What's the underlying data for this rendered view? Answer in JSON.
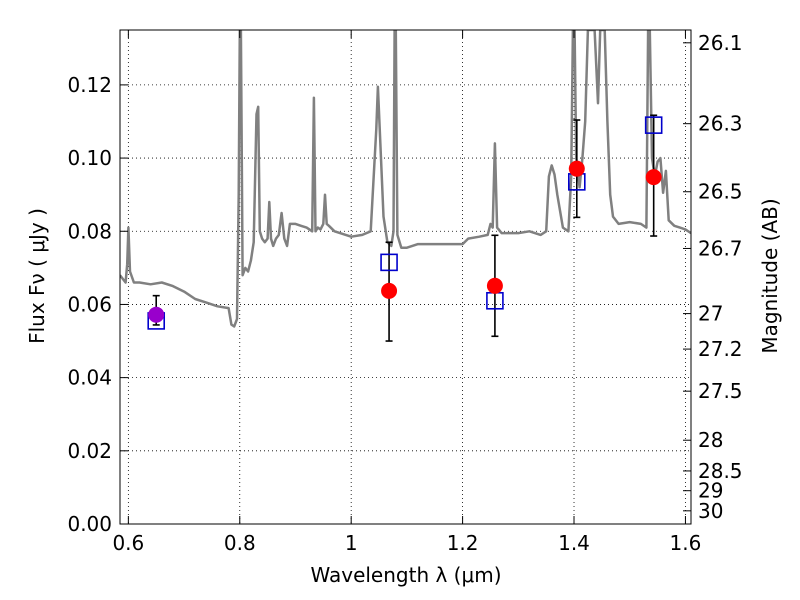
{
  "chart_data": {
    "type": "scatter",
    "title": "",
    "xlabel": "Wavelength  λ (μm)",
    "ylabel": "Flux  Fν  ( μJy )",
    "ylabel_right": "Magnitude (AB)",
    "xlim": [
      0.585,
      1.61
    ],
    "ylim": [
      0.0,
      0.135
    ],
    "grid": true,
    "x_ticks": [
      0.6,
      0.8,
      1.0,
      1.2,
      1.4,
      1.6
    ],
    "x_tick_labels": [
      "0.6",
      "0.8",
      "1",
      "1.2",
      "1.4",
      "1.6"
    ],
    "y_ticks": [
      0.0,
      0.02,
      0.04,
      0.06,
      0.08,
      0.1,
      0.12
    ],
    "y_tick_labels": [
      "0.00",
      "0.02",
      "0.04",
      "0.06",
      "0.08",
      "0.10",
      "0.12"
    ],
    "right_ticks": [
      {
        "flux": 0.1315,
        "label": "26.1"
      },
      {
        "flux": 0.1094,
        "label": "26.3"
      },
      {
        "flux": 0.0908,
        "label": "26.5"
      },
      {
        "flux": 0.0753,
        "label": "26.7"
      },
      {
        "flux": 0.0575,
        "label": "27"
      },
      {
        "flux": 0.0478,
        "label": "27.2"
      },
      {
        "flux": 0.0363,
        "label": "27.5"
      },
      {
        "flux": 0.0229,
        "label": "28"
      },
      {
        "flux": 0.0145,
        "label": "28.5"
      },
      {
        "flux": 0.0091,
        "label": "29"
      },
      {
        "flux": 0.0036,
        "label": "30"
      }
    ],
    "colors": {
      "model": "#808080",
      "observed": "#ff0000",
      "first_point": "#9900cc",
      "synthetic": "#0000cc",
      "errorbar": "#000000"
    },
    "series": [
      {
        "kind": "line",
        "points": [
          [
            0.585,
            0.068
          ],
          [
            0.595,
            0.066
          ],
          [
            0.598,
            0.071
          ],
          [
            0.6,
            0.081
          ],
          [
            0.603,
            0.069
          ],
          [
            0.61,
            0.066
          ],
          [
            0.62,
            0.066
          ],
          [
            0.64,
            0.0655
          ],
          [
            0.66,
            0.066
          ],
          [
            0.68,
            0.065
          ],
          [
            0.7,
            0.0635
          ],
          [
            0.72,
            0.0615
          ],
          [
            0.74,
            0.0605
          ],
          [
            0.76,
            0.0595
          ],
          [
            0.78,
            0.059
          ],
          [
            0.785,
            0.0545
          ],
          [
            0.79,
            0.054
          ],
          [
            0.795,
            0.056
          ],
          [
            0.798,
            0.09
          ],
          [
            0.8,
            0.135
          ],
          [
            0.802,
            0.135
          ],
          [
            0.805,
            0.068
          ],
          [
            0.81,
            0.07
          ],
          [
            0.815,
            0.069
          ],
          [
            0.82,
            0.072
          ],
          [
            0.825,
            0.077
          ],
          [
            0.83,
            0.112
          ],
          [
            0.833,
            0.114
          ],
          [
            0.836,
            0.08
          ],
          [
            0.84,
            0.078
          ],
          [
            0.845,
            0.077
          ],
          [
            0.85,
            0.078
          ],
          [
            0.853,
            0.088
          ],
          [
            0.856,
            0.078
          ],
          [
            0.86,
            0.076
          ],
          [
            0.865,
            0.078
          ],
          [
            0.87,
            0.079
          ],
          [
            0.875,
            0.085
          ],
          [
            0.88,
            0.078
          ],
          [
            0.885,
            0.076
          ],
          [
            0.89,
            0.082
          ],
          [
            0.9,
            0.082
          ],
          [
            0.91,
            0.0815
          ],
          [
            0.92,
            0.081
          ],
          [
            0.93,
            0.08
          ],
          [
            0.933,
            0.1165
          ],
          [
            0.936,
            0.08
          ],
          [
            0.94,
            0.081
          ],
          [
            0.945,
            0.0805
          ],
          [
            0.95,
            0.082
          ],
          [
            0.953,
            0.09
          ],
          [
            0.956,
            0.082
          ],
          [
            0.96,
            0.0815
          ],
          [
            0.97,
            0.08
          ],
          [
            0.98,
            0.0795
          ],
          [
            1.0,
            0.0785
          ],
          [
            1.02,
            0.079
          ],
          [
            1.035,
            0.08
          ],
          [
            1.045,
            0.108
          ],
          [
            1.048,
            0.1195
          ],
          [
            1.052,
            0.105
          ],
          [
            1.058,
            0.084
          ],
          [
            1.065,
            0.077
          ],
          [
            1.072,
            0.076
          ],
          [
            1.076,
            0.08
          ],
          [
            1.078,
            0.135
          ],
          [
            1.08,
            0.135
          ],
          [
            1.083,
            0.079
          ],
          [
            1.09,
            0.0755
          ],
          [
            1.1,
            0.0755
          ],
          [
            1.12,
            0.0765
          ],
          [
            1.14,
            0.0765
          ],
          [
            1.16,
            0.0765
          ],
          [
            1.18,
            0.0765
          ],
          [
            1.2,
            0.0765
          ],
          [
            1.21,
            0.078
          ],
          [
            1.23,
            0.0785
          ],
          [
            1.245,
            0.079
          ],
          [
            1.25,
            0.082
          ],
          [
            1.254,
            0.081
          ],
          [
            1.258,
            0.104
          ],
          [
            1.262,
            0.081
          ],
          [
            1.27,
            0.0795
          ],
          [
            1.3,
            0.0795
          ],
          [
            1.32,
            0.08
          ],
          [
            1.34,
            0.079
          ],
          [
            1.35,
            0.08
          ],
          [
            1.355,
            0.095
          ],
          [
            1.36,
            0.098
          ],
          [
            1.365,
            0.0955
          ],
          [
            1.37,
            0.09
          ],
          [
            1.38,
            0.081
          ],
          [
            1.39,
            0.08
          ],
          [
            1.395,
            0.095
          ],
          [
            1.398,
            0.135
          ],
          [
            1.401,
            0.135
          ],
          [
            1.404,
            0.1
          ],
          [
            1.41,
            0.092
          ],
          [
            1.415,
            0.1
          ],
          [
            1.42,
            0.11
          ],
          [
            1.425,
            0.135
          ],
          [
            1.437,
            0.135
          ],
          [
            1.443,
            0.115
          ],
          [
            1.447,
            0.135
          ],
          [
            1.455,
            0.135
          ],
          [
            1.46,
            0.11
          ],
          [
            1.465,
            0.09
          ],
          [
            1.47,
            0.084
          ],
          [
            1.48,
            0.082
          ],
          [
            1.5,
            0.0825
          ],
          [
            1.52,
            0.082
          ],
          [
            1.53,
            0.081
          ],
          [
            1.533,
            0.135
          ],
          [
            1.536,
            0.135
          ],
          [
            1.54,
            0.1
          ],
          [
            1.545,
            0.095
          ],
          [
            1.55,
            0.099
          ],
          [
            1.555,
            0.1
          ],
          [
            1.56,
            0.0905
          ],
          [
            1.565,
            0.0965
          ],
          [
            1.57,
            0.083
          ],
          [
            1.58,
            0.0815
          ],
          [
            1.59,
            0.081
          ],
          [
            1.6,
            0.0805
          ],
          [
            1.61,
            0.0795
          ]
        ]
      },
      {
        "kind": "synthetic",
        "marker": "open-square",
        "x": [
          0.65,
          1.068,
          1.258,
          1.405,
          1.543
        ],
        "y": [
          0.0555,
          0.0715,
          0.061,
          0.0935,
          0.109
        ]
      },
      {
        "kind": "observed",
        "marker": "filled-circle",
        "x": [
          0.65,
          1.068,
          1.258,
          1.405,
          1.543
        ],
        "y": [
          0.0572,
          0.0637,
          0.0651,
          0.0971,
          0.0948
        ],
        "yerr_low": [
          0.0028,
          0.0137,
          0.0138,
          0.0133,
          0.0161
        ],
        "yerr_high": [
          0.0052,
          0.0133,
          0.0138,
          0.0133,
          0.0169
        ]
      }
    ]
  }
}
